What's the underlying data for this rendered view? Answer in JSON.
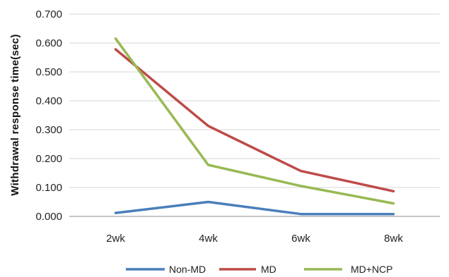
{
  "chart_data": {
    "type": "line",
    "title": "",
    "xlabel": "",
    "ylabel": "Withdrawal response time(sec)",
    "categories": [
      "2wk",
      "4wk",
      "6wk",
      "8wk"
    ],
    "ylim": [
      0,
      0.7
    ],
    "yticks": [
      "0.000",
      "0.100",
      "0.200",
      "0.300",
      "0.400",
      "0.500",
      "0.600",
      "0.700"
    ],
    "grid": "horizontal",
    "legend": "bottom",
    "series": [
      {
        "name": "Non-MD",
        "color": "#4a7ebb",
        "values": [
          0.012,
          0.05,
          0.008,
          0.008
        ]
      },
      {
        "name": "MD",
        "color": "#be4b48",
        "values": [
          0.578,
          0.313,
          0.157,
          0.087
        ]
      },
      {
        "name": "MD+NCP",
        "color": "#98b954",
        "values": [
          0.615,
          0.178,
          0.105,
          0.045
        ]
      }
    ]
  }
}
